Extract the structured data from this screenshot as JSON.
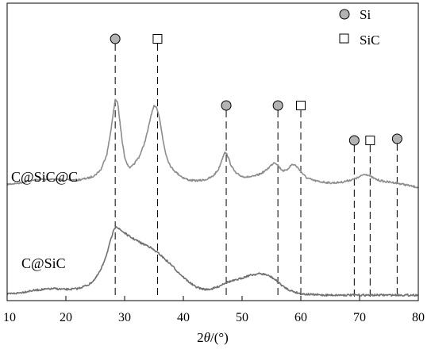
{
  "chart_data": {
    "type": "line",
    "title": "",
    "xlabel_prefix": "2",
    "xlabel_italic": "θ",
    "xlabel_suffix": "/(°)",
    "ylabel": "",
    "xlim": [
      10,
      80
    ],
    "x_ticks": [
      10,
      20,
      30,
      40,
      50,
      60,
      70,
      80
    ],
    "grid": false,
    "legend": {
      "placement": "top-right",
      "entries": [
        {
          "label": "Si",
          "marker": "circle",
          "color": "#b3b3b3"
        },
        {
          "label": "SiC",
          "marker": "square",
          "color": "#ffffff"
        }
      ]
    },
    "series": [
      {
        "name": "C@SiC@C",
        "color": "#8c8c8c",
        "x": [
          10,
          12,
          14,
          16,
          18,
          20,
          22,
          24,
          25,
          26,
          27,
          27.5,
          28,
          28.4,
          28.8,
          29.2,
          29.6,
          30,
          30.5,
          31,
          31.5,
          32,
          32.5,
          33,
          33.5,
          34,
          34.5,
          35,
          35.5,
          36,
          36.5,
          37,
          37.5,
          38,
          39,
          40,
          41,
          42,
          43,
          44,
          45,
          46,
          46.5,
          47,
          47.5,
          48,
          48.5,
          49,
          50,
          51,
          52,
          53,
          54,
          55,
          55.5,
          56,
          56.5,
          57,
          57.5,
          58,
          58.5,
          59,
          59.5,
          60,
          60.5,
          61,
          62,
          63,
          64,
          65,
          66,
          67,
          68,
          69,
          70,
          70.5,
          71,
          71.5,
          72,
          73,
          74,
          75,
          76,
          77,
          78,
          79,
          80
        ],
        "y": [
          0.82,
          0.87,
          0.95,
          1.0,
          1.0,
          0.97,
          0.97,
          1.05,
          1.15,
          1.35,
          1.9,
          2.5,
          3.2,
          3.8,
          3.7,
          3.0,
          2.3,
          1.8,
          1.5,
          1.4,
          1.5,
          1.65,
          1.8,
          2.05,
          2.35,
          2.75,
          3.25,
          3.55,
          3.5,
          3.1,
          2.4,
          1.9,
          1.6,
          1.4,
          1.2,
          1.05,
          0.97,
          0.95,
          0.96,
          1.0,
          1.1,
          1.35,
          1.65,
          1.95,
          1.85,
          1.55,
          1.35,
          1.2,
          1.1,
          1.08,
          1.1,
          1.18,
          1.3,
          1.5,
          1.6,
          1.52,
          1.38,
          1.3,
          1.3,
          1.42,
          1.52,
          1.5,
          1.4,
          1.28,
          1.15,
          1.05,
          0.97,
          0.92,
          0.9,
          0.87,
          0.88,
          0.9,
          0.95,
          1.0,
          1.08,
          1.15,
          1.18,
          1.15,
          1.08,
          0.98,
          0.93,
          0.9,
          0.88,
          0.84,
          0.8,
          0.75,
          0.72
        ]
      },
      {
        "name": "C@SiC",
        "color": "#707070",
        "x": [
          10,
          12,
          14,
          16,
          18,
          20,
          22,
          24,
          25,
          26,
          27,
          27.5,
          28,
          28.5,
          29,
          30,
          31,
          32,
          33,
          34,
          35,
          36,
          37,
          38,
          39,
          40,
          41,
          42,
          43,
          44,
          45,
          46,
          47,
          48,
          49,
          50,
          51,
          52,
          53,
          54,
          55,
          56,
          57,
          58,
          59,
          60,
          62,
          64,
          66,
          68,
          70,
          72,
          74,
          76,
          78,
          80
        ],
        "y": [
          0.02,
          0.05,
          0.1,
          0.13,
          0.15,
          0.13,
          0.15,
          0.25,
          0.38,
          0.6,
          0.98,
          1.22,
          1.45,
          1.62,
          1.55,
          1.45,
          1.35,
          1.28,
          1.2,
          1.15,
          1.05,
          0.95,
          0.82,
          0.7,
          0.55,
          0.42,
          0.3,
          0.2,
          0.15,
          0.13,
          0.15,
          0.2,
          0.28,
          0.32,
          0.35,
          0.4,
          0.45,
          0.48,
          0.5,
          0.48,
          0.42,
          0.32,
          0.2,
          0.12,
          0.07,
          0.03,
          0.01,
          0.0,
          0.0,
          0.0,
          0.0,
          0.0,
          0.0,
          0.0,
          0.0,
          0.0
        ]
      }
    ],
    "peak_markers": [
      {
        "phase": "Si",
        "x": 28.4
      },
      {
        "phase": "SiC",
        "x": 35.6
      },
      {
        "phase": "Si",
        "x": 47.3
      },
      {
        "phase": "Si",
        "x": 56.1
      },
      {
        "phase": "SiC",
        "x": 60.0
      },
      {
        "phase": "Si",
        "x": 69.1
      },
      {
        "phase": "SiC",
        "x": 71.8
      },
      {
        "phase": "Si",
        "x": 76.4
      }
    ]
  }
}
